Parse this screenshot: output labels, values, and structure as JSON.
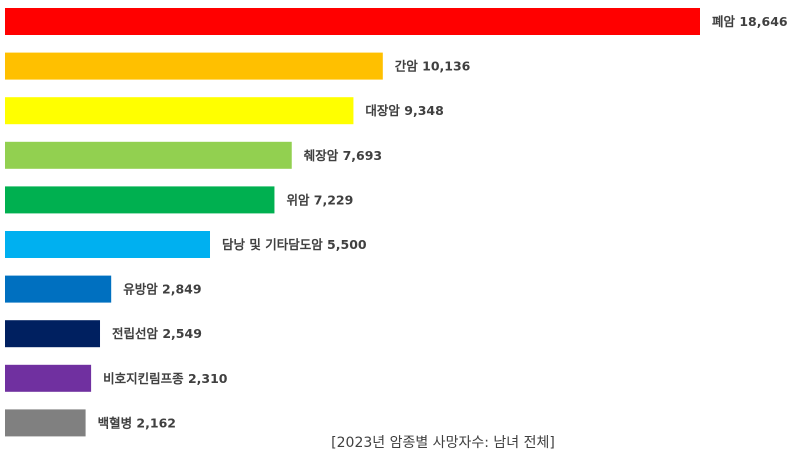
{
  "chart_data": {
    "type": "bar",
    "orientation": "horizontal",
    "categories": [
      "폐암",
      "간암",
      "대장암",
      "췌장암",
      "위암",
      "담낭 및 기타담도암",
      "유방암",
      "전립선암",
      "비호지킨림프종",
      "백혈병"
    ],
    "values": [
      18646,
      10136,
      9348,
      7693,
      7229,
      5500,
      2849,
      2549,
      2310,
      2162
    ],
    "value_labels": [
      "18,646",
      "10,136",
      "9,348",
      "7,693",
      "7,229",
      "5,500",
      "2,849",
      "2,549",
      "2,310",
      "2,162"
    ],
    "colors": [
      "#ff0000",
      "#ffc000",
      "#ffff00",
      "#92d050",
      "#00b050",
      "#00b0f0",
      "#0070c0",
      "#002060",
      "#7030a0",
      "#808080"
    ],
    "caption": "[2023년 암종별 사망자수: 남녀 전체]",
    "title": "",
    "xlabel": "",
    "ylabel": "",
    "xlim": [
      0,
      18646
    ],
    "grid": false,
    "legend": "none"
  }
}
